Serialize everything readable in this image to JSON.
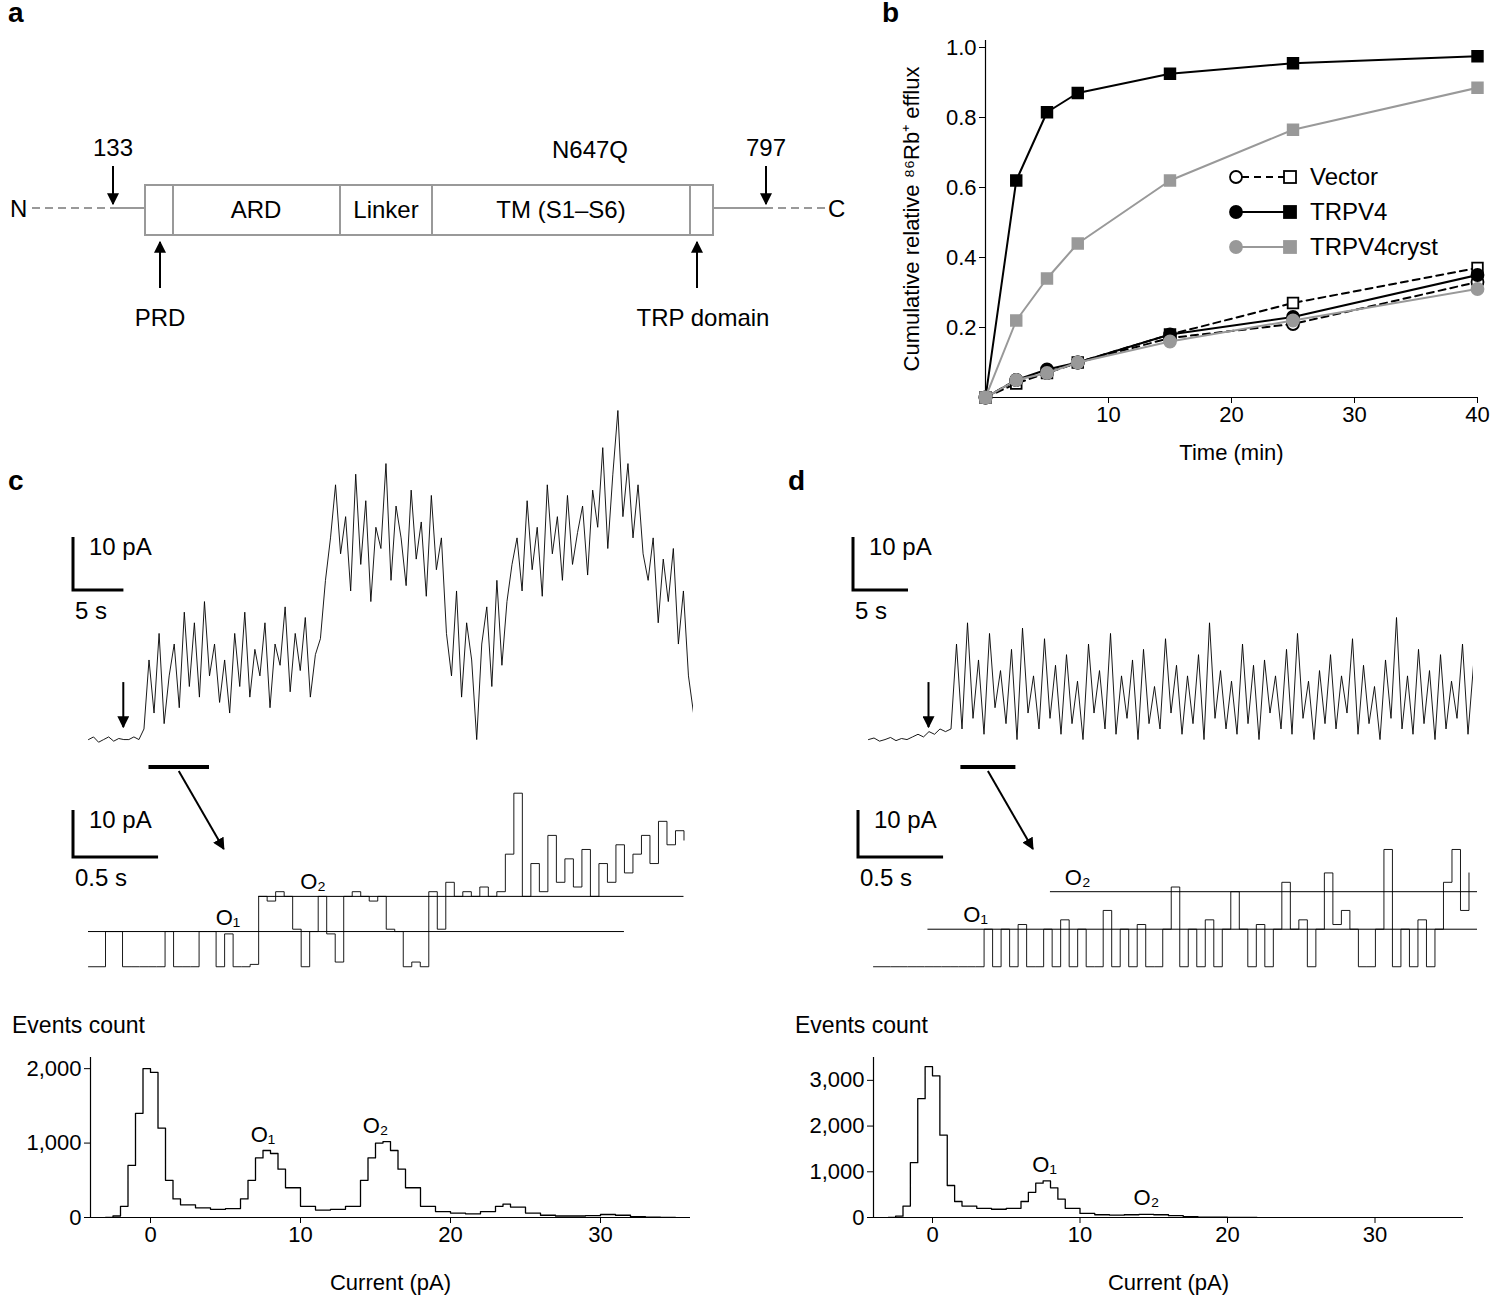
{
  "diagram": {
    "panel": "a",
    "n_label": "N",
    "c_label": "C",
    "domains": [
      "ARD",
      "Linker",
      "TM (S1–S6)"
    ],
    "sites_above": [
      "133",
      "797"
    ],
    "mutation": "N647Q",
    "sites_below": [
      "PRD",
      "TRP domain"
    ]
  },
  "chart_data": [
    {
      "panel": "b",
      "type": "line",
      "xlabel": "Time (min)",
      "ylabel": "Cumulative relative ⁸⁶Rb⁺ efflux",
      "x": [
        0,
        2.5,
        5,
        7.5,
        15,
        25,
        40
      ],
      "xlim": [
        0,
        40
      ],
      "xticks": [
        10,
        20,
        30,
        40
      ],
      "ylim": [
        0,
        1.02
      ],
      "yticks": [
        0.2,
        0.4,
        0.6,
        0.8,
        {
          "value": 1,
          "label": "1.0"
        }
      ],
      "legend": "right",
      "series": [
        {
          "name": "Vector",
          "color": "#000000",
          "marker": "open-circle",
          "line_style": "dashed",
          "values": [
            0,
            0.05,
            0.07,
            0.1,
            0.17,
            0.21,
            0.33
          ]
        },
        {
          "name": "Vector",
          "color": "#000000",
          "marker": "open-square",
          "line_style": "dashed",
          "values": [
            0,
            0.04,
            0.07,
            0.1,
            0.18,
            0.27,
            0.37
          ]
        },
        {
          "name": "TRPV4",
          "color": "#000000",
          "marker": "circle",
          "line_style": "solid",
          "values": [
            0,
            0.05,
            0.08,
            0.1,
            0.18,
            0.23,
            0.35
          ]
        },
        {
          "name": "TRPV4",
          "color": "#000000",
          "marker": "square",
          "line_style": "solid",
          "values": [
            0,
            0.62,
            0.815,
            0.87,
            0.925,
            0.955,
            0.975
          ]
        },
        {
          "name": "TRPV4cryst",
          "color": "#999999",
          "marker": "circle",
          "line_style": "solid",
          "values": [
            0,
            0.05,
            0.07,
            0.1,
            0.16,
            0.22,
            0.31
          ]
        },
        {
          "name": "TRPV4cryst",
          "color": "#999999",
          "marker": "square",
          "line_style": "solid",
          "values": [
            0,
            0.22,
            0.34,
            0.44,
            0.62,
            0.765,
            0.885
          ]
        }
      ]
    },
    {
      "panel": "c",
      "type": "line",
      "tick_labels": false,
      "color": "#000000",
      "xlim": [
        0,
        60
      ],
      "ylim": [
        -3,
        62
      ],
      "x": [
        0,
        0.5,
        1,
        1.5,
        2,
        2.5,
        3,
        3.5,
        4,
        4.5,
        5,
        5.5,
        6,
        6.5,
        7,
        7.5,
        8,
        8.5,
        9,
        9.5,
        10,
        10.5,
        11,
        11.5,
        12,
        12.5,
        13,
        13.5,
        14,
        14.5,
        15,
        15.5,
        16,
        16.5,
        17,
        17.5,
        18,
        18.5,
        19,
        19.5,
        20,
        20.5,
        21,
        21.5,
        22,
        22.5,
        23,
        23.5,
        24,
        24.5,
        25,
        25.5,
        26,
        26.5,
        27,
        27.5,
        28,
        28.5,
        29,
        29.5,
        30,
        30.5,
        31,
        31.5,
        32,
        32.5,
        33,
        33.5,
        34,
        34.5,
        35,
        35.5,
        36,
        36.5,
        37,
        37.5,
        38,
        38.5,
        39,
        39.5,
        40,
        40.5,
        41,
        41.5,
        42,
        42.5,
        43,
        43.5,
        44,
        44.5,
        45,
        45.5,
        46,
        46.5,
        47,
        47.5,
        48,
        48.5,
        49,
        49.5,
        50,
        50.5,
        51,
        51.5,
        52,
        52.5,
        53,
        53.5,
        54,
        54.5,
        55,
        55.5,
        56,
        56.5,
        57,
        57.5,
        58,
        58.5,
        59,
        59.5,
        60
      ],
      "values": [
        0,
        0.5,
        -0.5,
        0,
        0.5,
        -0.3,
        0.2,
        0,
        0,
        0.5,
        0,
        2,
        15,
        5,
        20,
        3,
        12,
        18,
        6,
        24,
        10,
        22,
        8,
        26,
        12,
        18,
        7,
        15,
        5,
        20,
        10,
        24,
        8,
        17,
        12,
        22,
        6,
        18,
        14,
        25,
        9,
        20,
        13,
        23,
        8,
        16,
        19,
        30,
        38,
        48,
        35,
        42,
        28,
        50,
        33,
        45,
        26,
        40,
        36,
        52,
        30,
        44,
        38,
        29,
        47,
        34,
        41,
        27,
        46,
        32,
        38,
        20,
        12,
        28,
        8,
        22,
        15,
        0,
        18,
        25,
        10,
        30,
        14,
        26,
        33,
        38,
        28,
        45,
        32,
        40,
        27,
        48,
        35,
        42,
        30,
        46,
        33,
        39,
        44,
        31,
        47,
        40,
        55,
        36,
        50,
        62,
        42,
        52,
        38,
        48,
        35,
        30,
        38,
        22,
        34,
        26,
        36,
        18,
        28,
        12,
        5
      ],
      "arrow_x": 3.5,
      "zoom_range": [
        6,
        12
      ],
      "scale_bar": {
        "x": 5,
        "x_label": "5 s",
        "y": 10,
        "y_label": "10 pA"
      }
    },
    {
      "type": "step",
      "tick_labels": false,
      "color": "#000000",
      "xlim": [
        0,
        3.55
      ],
      "ylim": [
        -4,
        38
      ],
      "x": [
        0,
        0.05,
        0.1,
        0.15,
        0.2,
        0.25,
        0.3,
        0.35,
        0.4,
        0.45,
        0.5,
        0.55,
        0.6,
        0.65,
        0.7,
        0.75,
        0.8,
        0.85,
        0.9,
        0.95,
        1,
        1.05,
        1.1,
        1.15,
        1.2,
        1.25,
        1.3,
        1.35,
        1.4,
        1.45,
        1.5,
        1.55,
        1.6,
        1.65,
        1.7,
        1.75,
        1.8,
        1.85,
        1.9,
        1.95,
        2,
        2.05,
        2.1,
        2.15,
        2.2,
        2.25,
        2.3,
        2.35,
        2.4,
        2.45,
        2.5,
        2.55,
        2.6,
        2.65,
        2.7,
        2.75,
        2.8,
        2.85,
        2.9,
        2.95,
        3,
        3.05,
        3.1,
        3.15,
        3.2,
        3.25,
        3.3,
        3.35,
        3.4,
        3.45,
        3.5
      ],
      "values": [
        0,
        0,
        7.5,
        7.5,
        0,
        0,
        0,
        0,
        0,
        7.5,
        0,
        0,
        0,
        7.5,
        7.5,
        0,
        7,
        0,
        0,
        0.5,
        15,
        14,
        16,
        15,
        8,
        0,
        7.5,
        15,
        7,
        1,
        15,
        16,
        15,
        14,
        15,
        8,
        7.5,
        0,
        1,
        0,
        16,
        8,
        18,
        15,
        16,
        15,
        17,
        15,
        16,
        24,
        37,
        15,
        22,
        16,
        28,
        18,
        23,
        17,
        25,
        15,
        22,
        18,
        26,
        20,
        24,
        28,
        22,
        31,
        26,
        29,
        27
      ],
      "levels": [
        {
          "label": "O₁",
          "value": 7.5,
          "start": 0,
          "end": 3.15,
          "label_x": 0.82
        },
        {
          "label": "O₂",
          "value": 15,
          "start": 1.0,
          "end": 3.5,
          "label_x": 1.32
        }
      ],
      "scale_bar": {
        "x": 0.5,
        "x_label": "0.5 s",
        "y": 10,
        "y_label": "10 pA"
      }
    },
    {
      "type": "step",
      "color": "#000000",
      "xlabel": "Current (pA)",
      "ylabel": "Events count",
      "xlim": [
        -4,
        36
      ],
      "xticks": [
        0,
        10,
        20,
        30
      ],
      "ylim": [
        0,
        2150
      ],
      "yticks": [
        0,
        {
          "value": 1000,
          "label": "1,000"
        },
        {
          "value": 2000,
          "label": "2,000"
        }
      ],
      "x": [
        -3,
        -2.5,
        -2,
        -1.5,
        -1,
        -0.5,
        0,
        0.5,
        1,
        1.5,
        2,
        3,
        4,
        5,
        6,
        6.5,
        7,
        7.5,
        8,
        8.5,
        9,
        10,
        11,
        12,
        13,
        14,
        14.5,
        15,
        15.5,
        16,
        16.5,
        17,
        18,
        19,
        20,
        21,
        22,
        23,
        23.5,
        24,
        25,
        26,
        27,
        28,
        29,
        30,
        30.5,
        31,
        32,
        33,
        34,
        35
      ],
      "values": [
        0,
        20,
        150,
        700,
        1400,
        2000,
        1950,
        1200,
        500,
        250,
        170,
        130,
        110,
        120,
        250,
        500,
        800,
        900,
        860,
        650,
        400,
        150,
        100,
        110,
        150,
        500,
        800,
        1000,
        1020,
        900,
        650,
        400,
        150,
        80,
        60,
        50,
        80,
        150,
        180,
        140,
        60,
        30,
        20,
        20,
        25,
        40,
        40,
        30,
        10,
        5,
        0,
        0
      ],
      "peak_labels": [
        {
          "label": "O₁",
          "x": 7.5,
          "y": 900
        },
        {
          "label": "O₂",
          "x": 15,
          "y": 1020
        }
      ]
    },
    {
      "panel": "d",
      "type": "line",
      "tick_labels": false,
      "color": "#000000",
      "xlim": [
        0,
        55
      ],
      "ylim": [
        -3,
        62
      ],
      "x": [
        0,
        0.5,
        1,
        1.5,
        2,
        2.5,
        3,
        3.5,
        4,
        4.5,
        5,
        5.5,
        6,
        6.5,
        7,
        7.5,
        8,
        8.5,
        9,
        9.5,
        10,
        10.5,
        11,
        11.5,
        12,
        12.5,
        13,
        13.5,
        14,
        14.5,
        15,
        15.5,
        16,
        16.5,
        17,
        17.5,
        18,
        18.5,
        19,
        19.5,
        20,
        20.5,
        21,
        21.5,
        22,
        22.5,
        23,
        23.5,
        24,
        24.5,
        25,
        25.5,
        26,
        26.5,
        27,
        27.5,
        28,
        28.5,
        29,
        29.5,
        30,
        30.5,
        31,
        31.5,
        32,
        32.5,
        33,
        33.5,
        34,
        34.5,
        35,
        35.5,
        36,
        36.5,
        37,
        37.5,
        38,
        38.5,
        39,
        39.5,
        40,
        40.5,
        41,
        41.5,
        42,
        42.5,
        43,
        43.5,
        44,
        44.5,
        45,
        45.5,
        46,
        46.5,
        47,
        47.5,
        48,
        48.5,
        49,
        49.5,
        50,
        50.5,
        51,
        51.5,
        52,
        52.5,
        53,
        53.5,
        54,
        54.5,
        55
      ],
      "values": [
        0,
        0.3,
        -0.3,
        0,
        0.4,
        -0.2,
        0.2,
        0,
        0.5,
        1,
        0.5,
        1.5,
        1,
        2,
        1.5,
        2,
        18,
        2,
        22,
        4,
        15,
        1,
        20,
        6,
        13,
        3,
        17,
        0,
        21,
        5,
        12,
        2,
        19,
        4,
        14,
        1,
        16,
        3,
        11,
        0,
        18,
        5,
        13,
        2,
        20,
        1,
        12,
        4,
        15,
        0,
        17,
        3,
        10,
        2,
        19,
        5,
        14,
        1,
        12,
        3,
        16,
        0,
        22,
        4,
        13,
        2,
        11,
        1,
        18,
        3,
        14,
        0,
        15,
        5,
        12,
        2,
        17,
        1,
        20,
        4,
        11,
        0,
        13,
        3,
        16,
        2,
        12,
        5,
        19,
        1,
        14,
        3,
        10,
        0,
        15,
        4,
        23,
        2,
        12,
        1,
        17,
        3,
        13,
        0,
        16,
        2,
        11,
        4,
        18,
        1,
        14
      ],
      "arrow_x": 5.5,
      "zoom_range": [
        8.4,
        13.4
      ],
      "scale_bar": {
        "x": 5,
        "x_label": "5 s",
        "y": 10,
        "y_label": "10 pA"
      }
    },
    {
      "type": "step",
      "tick_labels": false,
      "color": "#000000",
      "xlim": [
        0,
        3.55
      ],
      "ylim": [
        -4,
        38
      ],
      "x": [
        0,
        0.05,
        0.1,
        0.15,
        0.2,
        0.25,
        0.3,
        0.35,
        0.4,
        0.45,
        0.5,
        0.55,
        0.6,
        0.65,
        0.7,
        0.75,
        0.8,
        0.85,
        0.9,
        0.95,
        1,
        1.05,
        1.1,
        1.15,
        1.2,
        1.25,
        1.3,
        1.35,
        1.4,
        1.45,
        1.5,
        1.55,
        1.6,
        1.65,
        1.7,
        1.75,
        1.8,
        1.85,
        1.9,
        1.95,
        2,
        2.05,
        2.1,
        2.15,
        2.2,
        2.25,
        2.3,
        2.35,
        2.4,
        2.45,
        2.5,
        2.55,
        2.6,
        2.65,
        2.7,
        2.75,
        2.8,
        2.85,
        2.9,
        2.95,
        3,
        3.05,
        3.1,
        3.15,
        3.2,
        3.25,
        3.3,
        3.35,
        3.4,
        3.45,
        3.5
      ],
      "values": [
        0,
        0,
        0,
        0,
        0,
        0,
        0,
        0,
        0,
        0,
        0,
        0,
        0,
        8,
        0,
        8,
        0,
        9,
        0,
        0,
        8,
        0,
        10,
        0,
        8,
        0,
        0,
        12,
        0,
        8,
        0,
        9,
        0,
        0,
        8,
        17,
        0,
        8,
        0,
        10,
        0,
        8,
        16,
        8,
        0,
        9,
        0,
        8,
        18,
        8,
        10,
        0,
        8,
        20,
        9,
        12,
        8,
        0,
        0,
        8,
        25,
        0,
        8,
        0,
        10,
        0,
        8,
        18,
        25,
        12,
        20
      ],
      "levels": [
        {
          "label": "O₁",
          "value": 8,
          "start": 0.32,
          "end": 3.55,
          "label_x": 0.6
        },
        {
          "label": "O₂",
          "value": 16,
          "start": 1.04,
          "end": 3.55,
          "label_x": 1.2
        }
      ],
      "scale_bar": {
        "x": 0.5,
        "x_label": "0.5 s",
        "y": 10,
        "y_label": "10 pA"
      }
    },
    {
      "type": "step",
      "color": "#000000",
      "xlabel": "Current (pA)",
      "ylabel": "Events count",
      "xlim": [
        -4,
        36
      ],
      "xticks": [
        0,
        10,
        20,
        30
      ],
      "ylim": [
        0,
        3500
      ],
      "yticks": [
        0,
        {
          "value": 1000,
          "label": "1,000"
        },
        {
          "value": 2000,
          "label": "2,000"
        },
        {
          "value": 3000,
          "label": "3,000"
        }
      ],
      "x": [
        -3,
        -2.5,
        -2,
        -1.5,
        -1,
        -0.5,
        0,
        0.5,
        1,
        1.5,
        2,
        3,
        4,
        5,
        6,
        6.5,
        7,
        7.5,
        8,
        8.5,
        9,
        10,
        11,
        12,
        13,
        14,
        15,
        16,
        17,
        18,
        20,
        22
      ],
      "values": [
        0,
        30,
        250,
        1200,
        2600,
        3300,
        3100,
        1800,
        700,
        350,
        250,
        200,
        180,
        200,
        350,
        550,
        750,
        800,
        650,
        400,
        200,
        90,
        60,
        50,
        60,
        70,
        60,
        40,
        20,
        10,
        0,
        0
      ],
      "peak_labels": [
        {
          "label": "O₁",
          "x": 7.6,
          "y": 800
        },
        {
          "label": "O₂",
          "x": 14.5,
          "y": 70
        }
      ]
    }
  ]
}
